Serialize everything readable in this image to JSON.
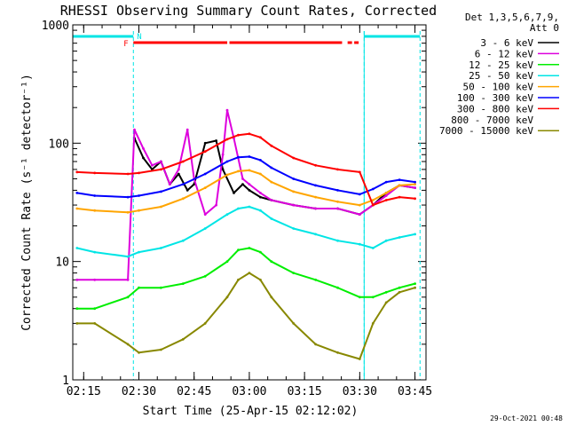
{
  "chart_data": {
    "type": "line",
    "title": "RHESSI Observing Summary Count Rates, Corrected",
    "xlabel": "Start Time (25-Apr-15 02:12:02)",
    "ylabel": "Corrected Count Rate (s⁻¹ detector⁻¹)",
    "y_scale": "log",
    "ylim": [
      1,
      1000
    ],
    "xlim": [
      2.2006,
      3.8
    ],
    "x_ticks": [
      "02:15",
      "02:30",
      "02:45",
      "03:00",
      "03:15",
      "03:30",
      "03:45"
    ],
    "x_tick_hours": [
      2.25,
      2.5,
      2.75,
      3.0,
      3.25,
      3.5,
      3.75
    ],
    "y_ticks": [
      "1",
      "10",
      "100",
      "1000"
    ],
    "y_tick_values": [
      1,
      10,
      100,
      1000
    ],
    "legend_title": [
      "Det 1,3,5,6,7,9,",
      "Att 0"
    ],
    "legend_position": "right",
    "footer": "29-Oct-2021 00:48",
    "annotations": {
      "flags": [
        "F",
        "N"
      ],
      "night_intervals": [
        [
          2.2006,
          2.475
        ],
        [
          3.52,
          3.773
        ]
      ],
      "flare_segments": [
        [
          2.475,
          2.9
        ],
        [
          2.91,
          3.42
        ],
        [
          3.445,
          3.465
        ],
        [
          3.475,
          3.495
        ]
      ]
    },
    "series": [
      {
        "name": "3 - 6 keV",
        "color": "#000000",
        "x": [
          2.22,
          2.3,
          2.45,
          2.48,
          2.52,
          2.56,
          2.6,
          2.64,
          2.68,
          2.72,
          2.75,
          2.8,
          2.85,
          2.88,
          2.93,
          2.97,
          3.0,
          3.05,
          3.1,
          3.2,
          3.3,
          3.4,
          3.5,
          3.56,
          3.62,
          3.68,
          3.75
        ],
        "y": [
          null,
          null,
          null,
          110,
          75,
          60,
          70,
          45,
          55,
          40,
          45,
          100,
          105,
          60,
          38,
          45,
          40,
          35,
          33,
          30,
          28,
          28,
          25,
          30,
          38,
          44,
          42
        ]
      },
      {
        "name": "6 - 12 keV",
        "color": "#dd00dd",
        "x": [
          2.22,
          2.3,
          2.45,
          2.48,
          2.52,
          2.56,
          2.6,
          2.64,
          2.68,
          2.72,
          2.75,
          2.8,
          2.85,
          2.88,
          2.9,
          2.93,
          2.97,
          3.0,
          3.05,
          3.1,
          3.2,
          3.3,
          3.4,
          3.5,
          3.56,
          3.62,
          3.68,
          3.75
        ],
        "y": [
          7,
          7,
          7,
          130,
          90,
          65,
          70,
          45,
          60,
          130,
          50,
          25,
          30,
          80,
          190,
          110,
          50,
          45,
          38,
          33,
          30,
          28,
          28,
          25,
          30,
          36,
          44,
          42
        ]
      },
      {
        "name": "12 - 25 keV",
        "color": "#00ee00",
        "x": [
          2.22,
          2.3,
          2.45,
          2.5,
          2.6,
          2.7,
          2.8,
          2.9,
          2.95,
          3.0,
          3.05,
          3.1,
          3.2,
          3.3,
          3.4,
          3.5,
          3.56,
          3.62,
          3.68,
          3.75
        ],
        "y": [
          4,
          4,
          5,
          6,
          6,
          6.5,
          7.5,
          10,
          12.5,
          13,
          12,
          10,
          8,
          7,
          6,
          5,
          5,
          5.5,
          6,
          6.5
        ]
      },
      {
        "name": "25 - 50 keV",
        "color": "#00e5e5",
        "x": [
          2.22,
          2.3,
          2.45,
          2.5,
          2.6,
          2.7,
          2.8,
          2.9,
          2.95,
          3.0,
          3.05,
          3.1,
          3.2,
          3.3,
          3.4,
          3.5,
          3.56,
          3.62,
          3.68,
          3.75
        ],
        "y": [
          13,
          12,
          11,
          12,
          13,
          15,
          19,
          25,
          28,
          29,
          27,
          23,
          19,
          17,
          15,
          14,
          13,
          15,
          16,
          17
        ]
      },
      {
        "name": "50 - 100 keV",
        "color": "#ffa500",
        "x": [
          2.22,
          2.3,
          2.45,
          2.5,
          2.6,
          2.7,
          2.8,
          2.9,
          2.95,
          3.0,
          3.05,
          3.1,
          3.2,
          3.3,
          3.4,
          3.5,
          3.56,
          3.62,
          3.68,
          3.75
        ],
        "y": [
          28,
          27,
          26,
          27,
          29,
          34,
          42,
          54,
          58,
          59,
          55,
          47,
          39,
          35,
          32,
          30,
          33,
          38,
          44,
          45
        ]
      },
      {
        "name": "100 - 300 keV",
        "color": "#0000ff",
        "x": [
          2.22,
          2.3,
          2.45,
          2.5,
          2.6,
          2.7,
          2.8,
          2.9,
          2.95,
          3.0,
          3.05,
          3.1,
          3.2,
          3.3,
          3.4,
          3.5,
          3.56,
          3.62,
          3.68,
          3.75
        ],
        "y": [
          38,
          36,
          35,
          36,
          39,
          45,
          55,
          70,
          76,
          77,
          72,
          62,
          50,
          44,
          40,
          37,
          41,
          47,
          49,
          47
        ]
      },
      {
        "name": "300 - 800 keV",
        "color": "#ff0000",
        "x": [
          2.22,
          2.3,
          2.45,
          2.5,
          2.6,
          2.7,
          2.8,
          2.9,
          2.95,
          3.0,
          3.05,
          3.1,
          3.2,
          3.3,
          3.4,
          3.5,
          3.56,
          3.62,
          3.68,
          3.75
        ],
        "y": [
          57,
          56,
          55,
          56,
          60,
          70,
          85,
          108,
          117,
          120,
          112,
          95,
          75,
          65,
          60,
          57,
          30,
          33,
          35,
          34
        ]
      },
      {
        "name": "800 - 7000 keV",
        "color": "#ffffff",
        "x": [],
        "y": []
      },
      {
        "name": "7000 - 15000 keV",
        "color": "#888800",
        "x": [
          2.22,
          2.3,
          2.45,
          2.5,
          2.6,
          2.7,
          2.8,
          2.9,
          2.95,
          3.0,
          3.05,
          3.1,
          3.2,
          3.3,
          3.4,
          3.5,
          3.56,
          3.62,
          3.68,
          3.75
        ],
        "y": [
          3,
          3,
          2,
          1.7,
          1.8,
          2.2,
          3,
          5,
          7,
          8,
          7,
          5,
          3,
          2,
          1.7,
          1.5,
          3,
          4.5,
          5.5,
          6
        ]
      }
    ]
  }
}
